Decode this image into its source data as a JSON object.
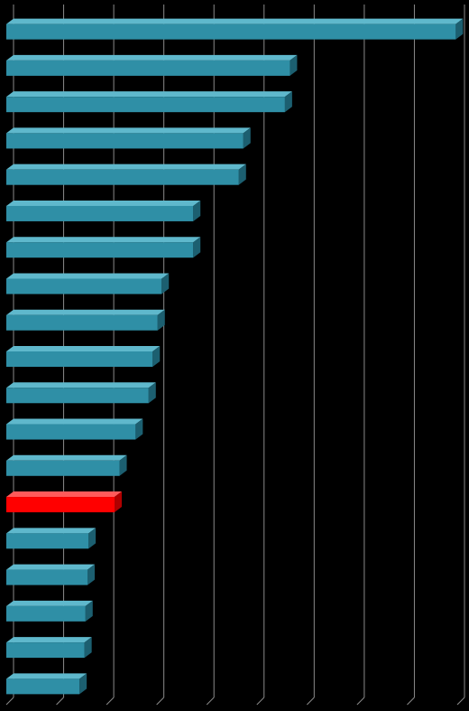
{
  "chart_data": {
    "type": "bar",
    "orientation": "horizontal",
    "style": "3d",
    "title": "",
    "xlabel": "",
    "ylabel": "",
    "grid": true,
    "legend": "none",
    "xlim": [
      0,
      9
    ],
    "categories": [
      "",
      "",
      "",
      "",
      "",
      "",
      "",
      "",
      "",
      "",
      "",
      "",
      "",
      "",
      "",
      "",
      "",
      "",
      ""
    ],
    "values": [
      8.97,
      5.66,
      5.56,
      4.73,
      4.64,
      3.73,
      3.73,
      3.1,
      3.02,
      2.92,
      2.84,
      2.58,
      2.26,
      2.16,
      1.64,
      1.62,
      1.58,
      1.56,
      1.46
    ],
    "highlight_index": 13,
    "colors": {
      "background": "#000000",
      "bar": "#2f8fa6",
      "bar_top": "#5fb8cc",
      "bar_side": "#1c5f70",
      "highlight": "#ff0000",
      "highlight_top": "#ff5a5a",
      "highlight_side": "#b00000",
      "grid": "#8a8a8a"
    }
  }
}
